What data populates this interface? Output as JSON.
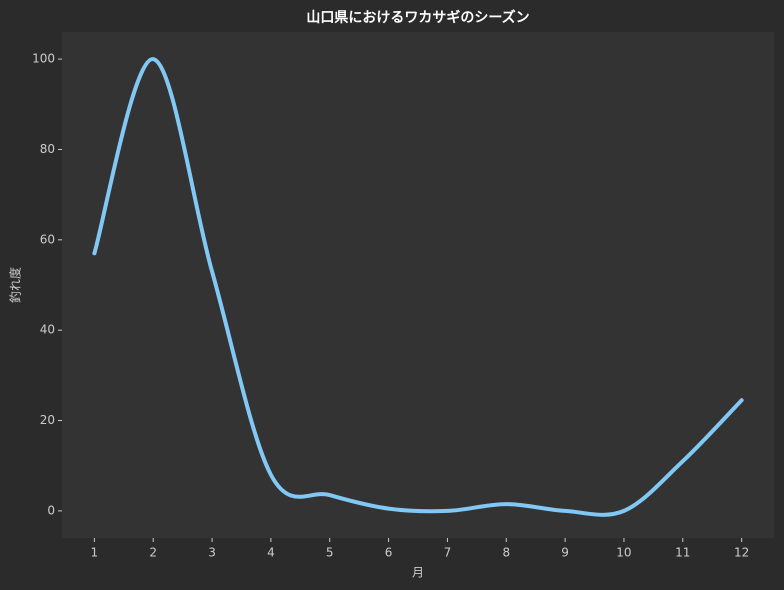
{
  "chart_data": {
    "type": "line",
    "title": "山口県におけるワカサギのシーズン",
    "x_label": "月",
    "y_label": "釣れ度",
    "x": [
      1,
      2,
      3,
      4,
      5,
      6,
      7,
      8,
      9,
      10,
      11,
      12
    ],
    "series": [
      {
        "name": "釣れ度",
        "color": "#82c8f5",
        "values": [
          57,
          100,
          53,
          8,
          3.5,
          0.5,
          0,
          1.5,
          0,
          0,
          11,
          24.5
        ]
      }
    ],
    "xlim": [
      0.45,
      12.55
    ],
    "xticks": [
      1,
      2,
      3,
      4,
      5,
      6,
      7,
      8,
      9,
      10,
      11,
      12
    ],
    "ylim": [
      -6,
      106
    ],
    "yticks": [
      0,
      20,
      40,
      60,
      80,
      100
    ],
    "smooth": true,
    "legend": false
  }
}
